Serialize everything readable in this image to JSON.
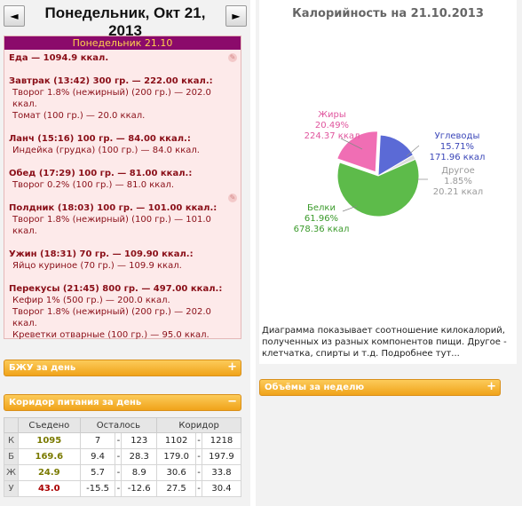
{
  "header": {
    "date_title": "Понедельник, Окт 21, 2013",
    "prev_label": "◄",
    "next_label": "►"
  },
  "diary": {
    "heading": "Понедельник 21.10",
    "total": "Еда — 1094.9 ккал.",
    "meals": [
      {
        "title": "Завтрак (13:42) 300 гр. — 222.00 ккал.:",
        "items": [
          "Творог 1.8% (нежирный) (200 гр.) — 202.0 ккал.",
          "Томат (100 гр.) — 20.0 ккал."
        ]
      },
      {
        "title": "Ланч (15:16) 100 гр. — 84.00 ккал.:",
        "items": [
          "Индейка (грудка) (100 гр.) — 84.0 ккал."
        ]
      },
      {
        "title": "Обед (17:29) 100 гр. — 81.00 ккал.:",
        "items": [
          "Творог 0.2% (100 гр.) — 81.0 ккал."
        ]
      },
      {
        "title": "Полдник (18:03) 100 гр. — 101.00 ккал.:",
        "items": [
          "Творог 1.8% (нежирный) (100 гр.) — 101.0 ккал."
        ]
      },
      {
        "title": "Ужин (18:31) 70 гр. — 109.90 ккал.:",
        "items": [
          "Яйцо куриное (70 гр.) — 109.9 ккал."
        ]
      },
      {
        "title": "Перекусы (21:45) 800 гр. — 497.00 ккал.:",
        "items": [
          "Кефир 1% (500 гр.) — 200.0 ккал.",
          "Творог 1.8% (нежирный) (200 гр.) — 202.0 ккал.",
          "Креветки отварные (100 гр.) — 95.0 ккал."
        ]
      }
    ]
  },
  "panels": {
    "bju_label": "БЖУ за день",
    "corridor_label": "Коридор питания за день",
    "volumes_label": "Объёмы за неделю",
    "expand_symbol": "+",
    "collapse_symbol": "−"
  },
  "corridor_table": {
    "headers": [
      "Съедено",
      "Осталось",
      "Коридор"
    ],
    "rows": [
      {
        "key": "К",
        "eaten": "1095",
        "left_min": "7",
        "left_max": "123",
        "cor_min": "1102",
        "cor_max": "1218"
      },
      {
        "key": "Б",
        "eaten": "169.6",
        "left_min": "9.4",
        "left_max": "28.3",
        "cor_min": "179.0",
        "cor_max": "197.9"
      },
      {
        "key": "Ж",
        "eaten": "24.9",
        "left_min": "5.7",
        "left_max": "8.9",
        "cor_min": "30.6",
        "cor_max": "33.8"
      },
      {
        "key": "У",
        "eaten": "43.0",
        "left_min": "-15.5",
        "left_max": "-12.6",
        "cor_min": "27.5",
        "cor_max": "30.4"
      }
    ],
    "dash": "-"
  },
  "chart": {
    "title": "Калорийность на 21.10.2013",
    "description": "Диаграмма показывает соотношение килокалорий, полученных из разных компонентов пищи. Другое - клетчатка, спирты и т.д. Подробнее тут...",
    "colors": {
      "fat": "#f06eb4",
      "carbs": "#5b6ad6",
      "other": "#dddddd",
      "protein": "#5dbb4a"
    }
  },
  "chart_data": {
    "type": "pie",
    "title": "Калорийность на 21.10.2013",
    "slices": [
      {
        "name": "Углеводы",
        "percent": 15.71,
        "kcal": 171.96,
        "pct_label": "15.71%",
        "kcal_label": "171.96 ккал"
      },
      {
        "name": "Другое",
        "percent": 1.85,
        "kcal": 20.21,
        "pct_label": "1.85%",
        "kcal_label": "20.21 ккал"
      },
      {
        "name": "Белки",
        "percent": 61.96,
        "kcal": 678.36,
        "pct_label": "61.96%",
        "kcal_label": "678.36 ккал"
      },
      {
        "name": "Жиры",
        "percent": 20.49,
        "kcal": 224.37,
        "pct_label": "20.49%",
        "kcal_label": "224.37 ккал"
      }
    ]
  }
}
